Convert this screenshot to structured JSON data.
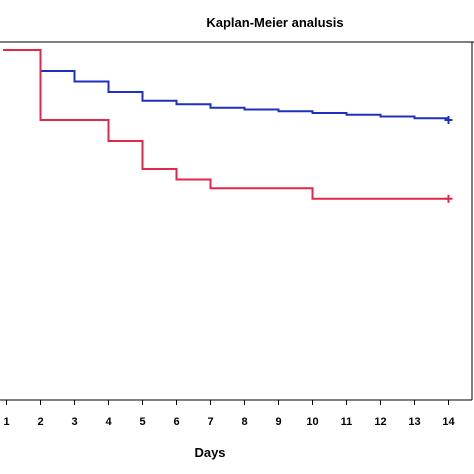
{
  "chart_data": {
    "type": "line",
    "title": "Kaplan-Meier analusis",
    "xlabel": "Days",
    "ylabel": "",
    "x_ticks": [
      1,
      2,
      3,
      4,
      5,
      6,
      7,
      8,
      9,
      10,
      11,
      12,
      13,
      14
    ],
    "xlim": [
      0.9,
      15
    ],
    "ylim": [
      0,
      1.08
    ],
    "grid": false,
    "legend": "none",
    "series": [
      {
        "color": "#1f2fbf",
        "step": true,
        "censored_end": true,
        "points": [
          [
            0.9,
            1.0
          ],
          [
            2,
            0.94
          ],
          [
            3,
            0.91
          ],
          [
            4,
            0.88
          ],
          [
            5,
            0.855
          ],
          [
            6,
            0.845
          ],
          [
            7,
            0.835
          ],
          [
            8,
            0.83
          ],
          [
            9,
            0.825
          ],
          [
            10,
            0.82
          ],
          [
            11,
            0.815
          ],
          [
            12,
            0.81
          ],
          [
            13,
            0.805
          ],
          [
            14,
            0.8
          ]
        ]
      },
      {
        "color": "#e0284a",
        "step": true,
        "censored_end": true,
        "points": [
          [
            0.9,
            1.0
          ],
          [
            2,
            0.8
          ],
          [
            4,
            0.74
          ],
          [
            5,
            0.66
          ],
          [
            6,
            0.63
          ],
          [
            7,
            0.605
          ],
          [
            10,
            0.575
          ],
          [
            14,
            0.575
          ]
        ]
      }
    ]
  }
}
